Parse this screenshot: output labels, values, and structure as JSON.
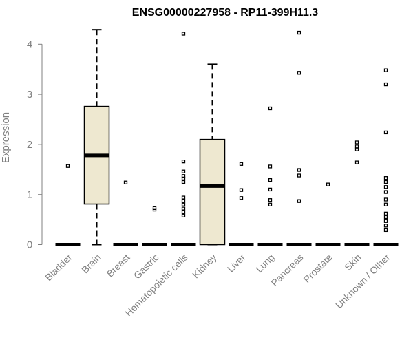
{
  "chart_data": {
    "type": "box",
    "title": "ENSG00000227958 - RP11-399H11.3",
    "ylabel": "Expression",
    "xlabel": "",
    "ylim": [
      0,
      4.3
    ],
    "yticks": [
      0,
      1,
      2,
      3,
      4
    ],
    "categories": [
      "Bladder",
      "Brain",
      "Breast",
      "Gastric",
      "Hematopoietic cells",
      "Kidney",
      "Liver",
      "Lung",
      "Pancreas",
      "Prostate",
      "Skin",
      "Unknown / Other"
    ],
    "box_fill": "#EEE8D0",
    "outlier_color": "#000000",
    "boxes": [
      {
        "category": "Bladder",
        "min": 0,
        "q1": 0,
        "median": 0,
        "q3": 0,
        "max": 0,
        "outliers": [
          1.57
        ]
      },
      {
        "category": "Brain",
        "min": 0.0,
        "q1": 0.81,
        "median": 1.78,
        "q3": 2.76,
        "max": 4.29,
        "outliers": []
      },
      {
        "category": "Breast",
        "min": 0,
        "q1": 0,
        "median": 0,
        "q3": 0,
        "max": 0,
        "outliers": [
          1.24
        ]
      },
      {
        "category": "Gastric",
        "min": 0,
        "q1": 0,
        "median": 0,
        "q3": 0,
        "max": 0,
        "outliers": [
          0.7,
          0.73
        ]
      },
      {
        "category": "Hematopoietic cells",
        "min": 0,
        "q1": 0,
        "median": 0,
        "q3": 0,
        "max": 0,
        "outliers": [
          4.21,
          1.66,
          1.46,
          1.37,
          1.32,
          1.25,
          0.94,
          0.87,
          0.8,
          0.72,
          0.65,
          0.58
        ]
      },
      {
        "category": "Kidney",
        "min": 0.0,
        "q1": 0.0,
        "median": 1.17,
        "q3": 2.1,
        "max": 3.6,
        "outliers": []
      },
      {
        "category": "Liver",
        "min": 0,
        "q1": 0,
        "median": 0,
        "q3": 0,
        "max": 0,
        "outliers": [
          1.61,
          1.09,
          0.93
        ]
      },
      {
        "category": "Lung",
        "min": 0,
        "q1": 0,
        "median": 0,
        "q3": 0,
        "max": 0,
        "outliers": [
          2.72,
          1.56,
          1.29,
          1.1,
          0.89,
          0.8
        ]
      },
      {
        "category": "Pancreas",
        "min": 0,
        "q1": 0,
        "median": 0,
        "q3": 0,
        "max": 0,
        "outliers": [
          4.23,
          3.43,
          1.49,
          1.38,
          0.87
        ]
      },
      {
        "category": "Prostate",
        "min": 0,
        "q1": 0,
        "median": 0,
        "q3": 0,
        "max": 0,
        "outliers": [
          1.2
        ]
      },
      {
        "category": "Skin",
        "min": 0,
        "q1": 0,
        "median": 0,
        "q3": 0,
        "max": 0,
        "outliers": [
          2.04,
          1.96,
          1.9,
          1.64
        ]
      },
      {
        "category": "Unknown / Other",
        "min": 0,
        "q1": 0,
        "median": 0,
        "q3": 0,
        "max": 0,
        "outliers": [
          3.48,
          3.2,
          2.24,
          1.33,
          1.25,
          1.15,
          1.05,
          0.9,
          0.8,
          0.62,
          0.55,
          0.47,
          0.38,
          0.29
        ]
      }
    ]
  }
}
